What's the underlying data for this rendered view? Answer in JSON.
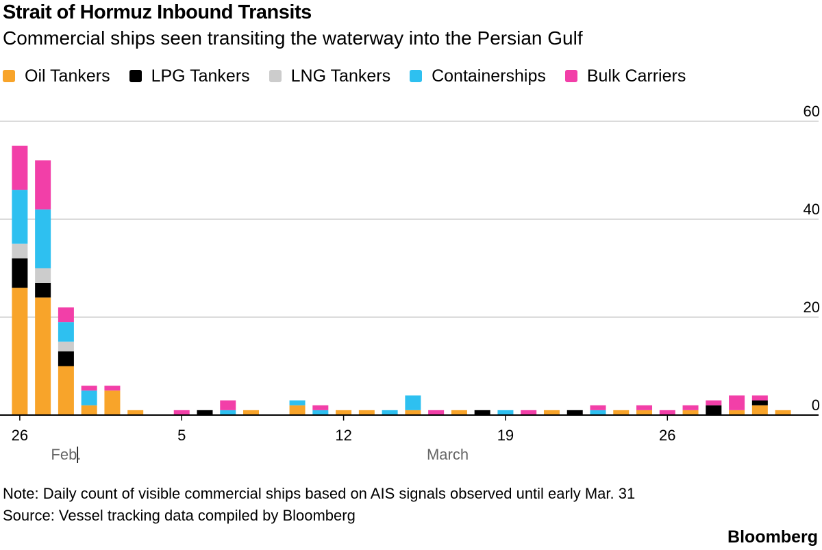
{
  "title": "Strait of Hormuz Inbound Transits",
  "subtitle": "Commercial ships seen transiting the waterway into the Persian Gulf",
  "legend": [
    {
      "label": "Oil Tankers",
      "color": "#f8a42a"
    },
    {
      "label": "LPG Tankers",
      "color": "#000000"
    },
    {
      "label": "LNG Tankers",
      "color": "#cccccc"
    },
    {
      "label": "Containerships",
      "color": "#2ec0f0"
    },
    {
      "label": "Bulk Carriers",
      "color": "#f23fa8"
    }
  ],
  "note": "Note: Daily count of visible commercial ships based on AIS signals observed until early Mar. 31",
  "source": "Source: Vessel tracking data compiled by Bloomberg",
  "brand": "Bloomberg",
  "chart_data": {
    "type": "bar",
    "stacked": true,
    "title": "Strait of Hormuz Inbound Transits",
    "categories": [
      "Feb 26",
      "Feb 27",
      "Feb 28",
      "Mar 1",
      "Mar 2",
      "Mar 3",
      "Mar 4",
      "Mar 5",
      "Mar 6",
      "Mar 7",
      "Mar 8",
      "Mar 9",
      "Mar 10",
      "Mar 11",
      "Mar 12",
      "Mar 13",
      "Mar 14",
      "Mar 15",
      "Mar 16",
      "Mar 17",
      "Mar 18",
      "Mar 19",
      "Mar 20",
      "Mar 21",
      "Mar 22",
      "Mar 23",
      "Mar 24",
      "Mar 25",
      "Mar 26",
      "Mar 27",
      "Mar 28",
      "Mar 29",
      "Mar 30",
      "Mar 31"
    ],
    "series": [
      {
        "name": "Oil Tankers",
        "color": "#f8a42a",
        "values": [
          26,
          24,
          10,
          2,
          5,
          1,
          0,
          0,
          0,
          0,
          1,
          0,
          2,
          0,
          1,
          1,
          0,
          1,
          0,
          1,
          0,
          0,
          0,
          1,
          0,
          0,
          1,
          1,
          0,
          1,
          0,
          1,
          2,
          1
        ]
      },
      {
        "name": "LPG Tankers",
        "color": "#000000",
        "values": [
          6,
          3,
          3,
          0,
          0,
          0,
          0,
          0,
          1,
          0,
          0,
          0,
          0,
          0,
          0,
          0,
          0,
          0,
          0,
          0,
          1,
          0,
          0,
          0,
          1,
          0,
          0,
          0,
          0,
          0,
          2,
          0,
          1,
          0
        ]
      },
      {
        "name": "LNG Tankers",
        "color": "#cccccc",
        "values": [
          3,
          3,
          2,
          0,
          0,
          0,
          0,
          0,
          0,
          0,
          0,
          0,
          0,
          0,
          0,
          0,
          0,
          0,
          0,
          0,
          0,
          0,
          0,
          0,
          0,
          0,
          0,
          0,
          0,
          0,
          0,
          0,
          0,
          0
        ]
      },
      {
        "name": "Containerships",
        "color": "#2ec0f0",
        "values": [
          11,
          12,
          4,
          3,
          0,
          0,
          0,
          0,
          0,
          1,
          0,
          0,
          1,
          1,
          0,
          0,
          1,
          3,
          0,
          0,
          0,
          1,
          0,
          0,
          0,
          1,
          0,
          0,
          0,
          0,
          0,
          0,
          0,
          0
        ]
      },
      {
        "name": "Bulk Carriers",
        "color": "#f23fa8",
        "values": [
          9,
          10,
          3,
          1,
          1,
          0,
          0,
          1,
          0,
          2,
          0,
          0,
          0,
          1,
          0,
          0,
          0,
          0,
          1,
          0,
          0,
          0,
          1,
          0,
          0,
          1,
          0,
          1,
          1,
          1,
          1,
          3,
          1,
          0
        ]
      }
    ],
    "x_ticks": [
      {
        "index": 0,
        "label": "26"
      },
      {
        "index": 7,
        "label": "5"
      },
      {
        "index": 14,
        "label": "12"
      },
      {
        "index": 21,
        "label": "19"
      },
      {
        "index": 28,
        "label": "26"
      }
    ],
    "month_labels": [
      {
        "index": 2,
        "label": "Feb."
      },
      {
        "index": 18.5,
        "label": "March"
      }
    ],
    "month_divider_index": 3,
    "y_ticks": [
      0,
      20,
      40,
      60
    ],
    "ylim": [
      0,
      60
    ],
    "xlabel": "",
    "ylabel": "",
    "grid": true
  }
}
